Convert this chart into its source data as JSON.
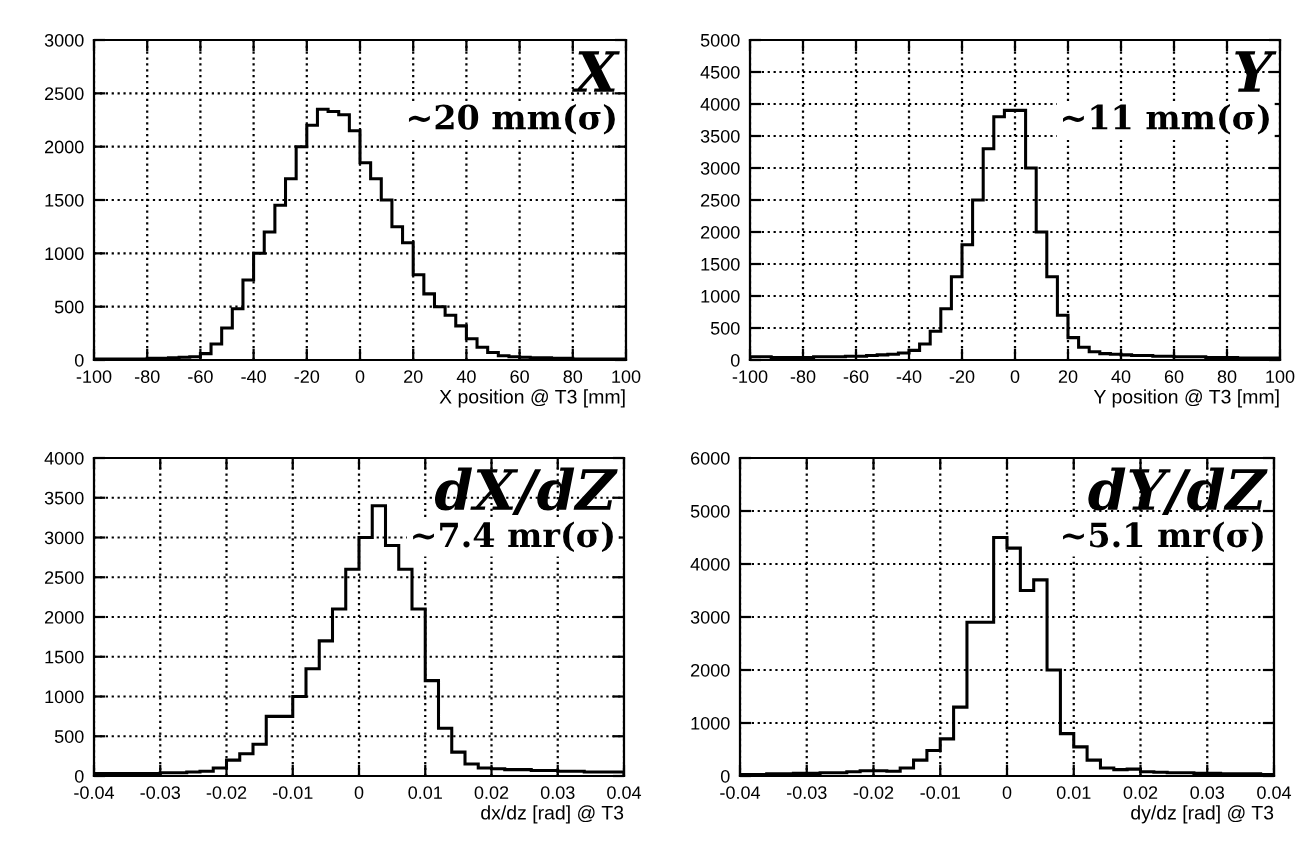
{
  "chart_data": [
    {
      "type": "histogram",
      "xlabel": "X position @ T3 [mm]",
      "annotations": [
        "X",
        "~20 mm(σ)"
      ],
      "color": "#000000",
      "grid": true,
      "bins": [
        -100,
        -96,
        -92,
        -88,
        -84,
        -80,
        -76,
        -72,
        -68,
        -64,
        -60,
        -56,
        -52,
        -48,
        -44,
        -40,
        -36,
        -32,
        -28,
        -24,
        -20,
        -16,
        -12,
        -8,
        -4,
        0,
        4,
        8,
        12,
        16,
        20,
        24,
        28,
        32,
        36,
        40,
        44,
        48,
        52,
        56,
        60,
        64,
        68,
        72,
        76,
        80,
        84,
        88,
        92,
        96,
        100
      ],
      "values": [
        10,
        10,
        10,
        10,
        10,
        15,
        15,
        20,
        25,
        30,
        60,
        150,
        300,
        480,
        750,
        1000,
        1200,
        1450,
        1700,
        2000,
        2200,
        2350,
        2330,
        2300,
        2150,
        1850,
        1700,
        1500,
        1250,
        1100,
        800,
        620,
        500,
        420,
        320,
        200,
        120,
        70,
        40,
        30,
        25,
        20,
        20,
        15,
        15,
        10,
        10,
        10,
        10,
        10
      ],
      "xlim": [
        -100,
        100
      ],
      "xticks": [
        -100,
        -80,
        -60,
        -40,
        -20,
        0,
        20,
        40,
        60,
        80,
        100
      ],
      "ylim": [
        0,
        3000
      ],
      "yticks": [
        0,
        500,
        1000,
        1500,
        2000,
        2500,
        3000
      ]
    },
    {
      "type": "histogram",
      "xlabel": "Y position @ T3 [mm]",
      "annotations": [
        "Y",
        "~11 mm(σ)"
      ],
      "color": "#000000",
      "grid": true,
      "bins": [
        -100,
        -96,
        -92,
        -88,
        -84,
        -80,
        -76,
        -72,
        -68,
        -64,
        -60,
        -56,
        -52,
        -48,
        -44,
        -40,
        -36,
        -32,
        -28,
        -24,
        -20,
        -16,
        -12,
        -8,
        -4,
        0,
        4,
        8,
        12,
        16,
        20,
        24,
        28,
        32,
        36,
        40,
        44,
        48,
        52,
        56,
        60,
        64,
        68,
        72,
        76,
        80,
        84,
        88,
        92,
        96,
        100
      ],
      "values": [
        50,
        50,
        40,
        40,
        40,
        40,
        50,
        50,
        50,
        60,
        60,
        70,
        80,
        90,
        110,
        150,
        250,
        450,
        800,
        1300,
        1800,
        2500,
        3300,
        3800,
        3900,
        3900,
        3000,
        2000,
        1300,
        700,
        350,
        200,
        130,
        100,
        90,
        80,
        70,
        70,
        60,
        60,
        50,
        50,
        50,
        40,
        40,
        40,
        30,
        30,
        30,
        30
      ],
      "xlim": [
        -100,
        100
      ],
      "xticks": [
        -100,
        -80,
        -60,
        -40,
        -20,
        0,
        20,
        40,
        60,
        80,
        100
      ],
      "ylim": [
        0,
        5000
      ],
      "yticks": [
        0,
        500,
        1000,
        1500,
        2000,
        2500,
        3000,
        3500,
        4000,
        4500,
        5000
      ]
    },
    {
      "type": "histogram",
      "xlabel": "dx/dz [rad] @ T3",
      "annotations": [
        "dX/dZ",
        "~7.4 mr(σ)"
      ],
      "color": "#000000",
      "grid": true,
      "bins": [
        -0.04,
        -0.038,
        -0.036,
        -0.034,
        -0.032,
        -0.03,
        -0.028,
        -0.026,
        -0.024,
        -0.022,
        -0.02,
        -0.018,
        -0.016,
        -0.014,
        -0.012,
        -0.01,
        -0.008,
        -0.006,
        -0.004,
        -0.002,
        0,
        0.002,
        0.004,
        0.006,
        0.008,
        0.01,
        0.012,
        0.014,
        0.016,
        0.018,
        0.02,
        0.022,
        0.024,
        0.026,
        0.028,
        0.03,
        0.032,
        0.034,
        0.036,
        0.038,
        0.04
      ],
      "values": [
        30,
        30,
        30,
        30,
        30,
        40,
        40,
        50,
        60,
        100,
        200,
        280,
        400,
        750,
        750,
        1000,
        1350,
        1700,
        2100,
        2600,
        3000,
        3400,
        2900,
        2600,
        2100,
        1200,
        600,
        300,
        150,
        100,
        90,
        80,
        80,
        70,
        70,
        60,
        60,
        50,
        50,
        50
      ],
      "xlim": [
        -0.04,
        0.04
      ],
      "xticks": [
        -0.04,
        -0.03,
        -0.02,
        -0.01,
        0,
        0.01,
        0.02,
        0.03,
        0.04
      ],
      "ylim": [
        0,
        4000
      ],
      "yticks": [
        0,
        500,
        1000,
        1500,
        2000,
        2500,
        3000,
        3500,
        4000
      ]
    },
    {
      "type": "histogram",
      "xlabel": "dy/dz [rad] @ T3",
      "annotations": [
        "dY/dZ",
        "~5.1 mr(σ)"
      ],
      "color": "#000000",
      "grid": true,
      "bins": [
        -0.04,
        -0.038,
        -0.036,
        -0.034,
        -0.032,
        -0.03,
        -0.028,
        -0.026,
        -0.024,
        -0.022,
        -0.02,
        -0.018,
        -0.016,
        -0.014,
        -0.012,
        -0.01,
        -0.008,
        -0.006,
        -0.004,
        -0.002,
        0,
        0.002,
        0.004,
        0.006,
        0.008,
        0.01,
        0.012,
        0.014,
        0.016,
        0.018,
        0.02,
        0.022,
        0.024,
        0.026,
        0.028,
        0.03,
        0.032,
        0.034,
        0.036,
        0.038,
        0.04
      ],
      "values": [
        30,
        30,
        40,
        40,
        50,
        50,
        60,
        60,
        80,
        100,
        100,
        90,
        150,
        300,
        480,
        700,
        1300,
        2900,
        2900,
        4500,
        4300,
        3500,
        3700,
        2000,
        800,
        550,
        300,
        150,
        120,
        130,
        80,
        70,
        60,
        60,
        50,
        50,
        40,
        40,
        40,
        30
      ],
      "xlim": [
        -0.04,
        0.04
      ],
      "xticks": [
        -0.04,
        -0.03,
        -0.02,
        -0.01,
        0,
        0.01,
        0.02,
        0.03,
        0.04
      ],
      "ylim": [
        0,
        6000
      ],
      "yticks": [
        0,
        1000,
        2000,
        3000,
        4000,
        5000,
        6000
      ]
    }
  ]
}
